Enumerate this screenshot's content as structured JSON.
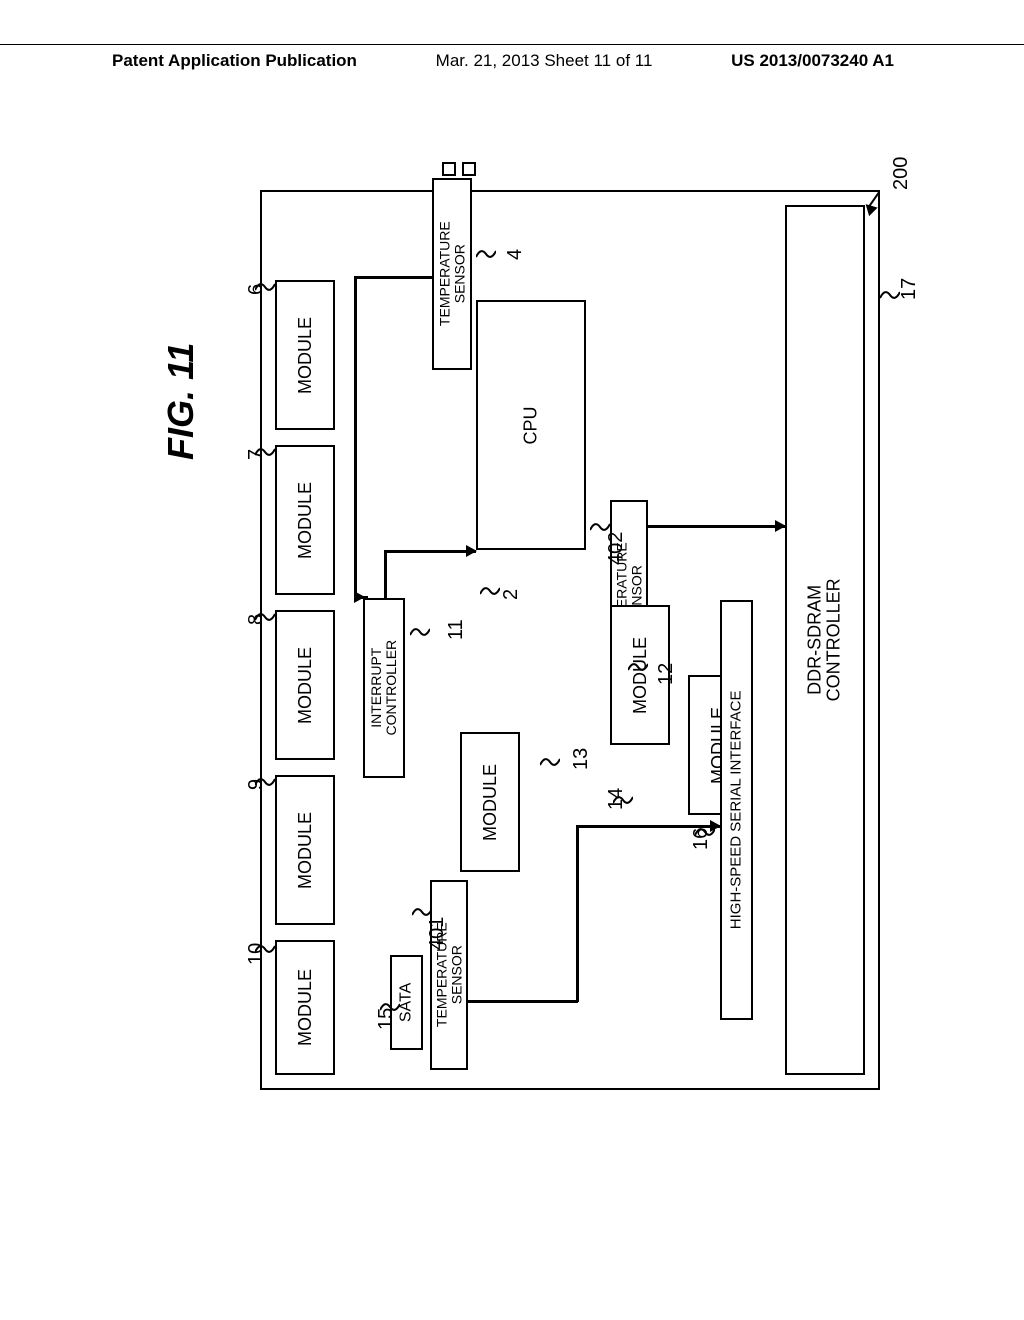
{
  "header": {
    "left": "Patent Application Publication",
    "mid": "Mar. 21, 2013  Sheet 11 of 11",
    "right": "US 2013/0073240 A1"
  },
  "figure": {
    "title": "FIG. 11",
    "chip_ref": "200",
    "chip_side_ref": "17",
    "blocks": {
      "module6": {
        "label": "MODULE",
        "ref": "6"
      },
      "module7": {
        "label": "MODULE",
        "ref": "7"
      },
      "module8": {
        "label": "MODULE",
        "ref": "8"
      },
      "module9": {
        "label": "MODULE",
        "ref": "9"
      },
      "module10": {
        "label": "MODULE",
        "ref": "10"
      },
      "temp4": {
        "label": "TEMPERATURE\nSENSOR",
        "ref": "4"
      },
      "cpu": {
        "label": "CPU",
        "ref": "2"
      },
      "interrupt": {
        "label": "INTERRUPT\nCONTROLLER",
        "ref": "11"
      },
      "temp402": {
        "label": "TEMPERATURE\nSENSOR",
        "ref": "402"
      },
      "module12": {
        "label": "MODULE",
        "ref": "12"
      },
      "module13": {
        "label": "MODULE",
        "ref": "13"
      },
      "module14": {
        "label": "MODULE",
        "ref": "14"
      },
      "temp401": {
        "label": "TEMPERATURE\nSENSOR",
        "ref": "401"
      },
      "sata": {
        "label": "SATA",
        "ref": "15"
      },
      "hssi": {
        "label": "HIGH-SPEED SERIAL INTERFACE",
        "ref": "16"
      },
      "ddr": {
        "label": "DDR-SDRAM\nCONTROLLER",
        "ref": ""
      }
    }
  },
  "style": {
    "border_color": "#000000",
    "bg": "#ffffff",
    "font": "Arial",
    "label_fontsize": 18,
    "ref_fontsize": 20,
    "line_width": 2.5
  }
}
